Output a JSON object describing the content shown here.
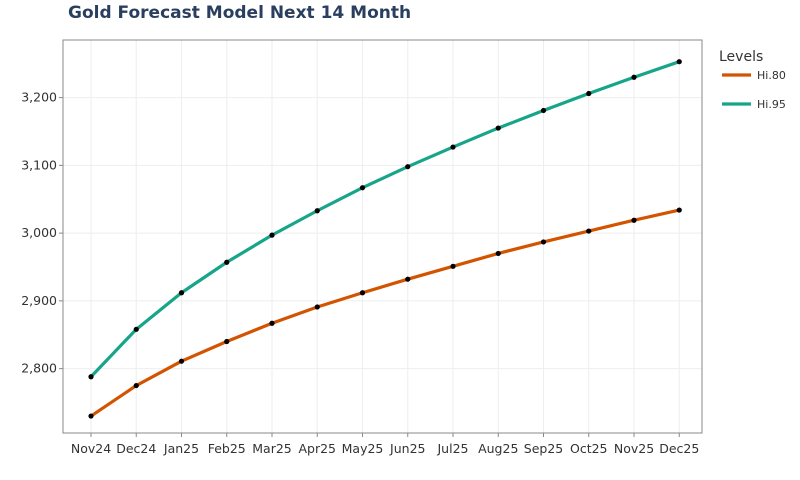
{
  "chart_data": {
    "type": "line",
    "title": "Gold Forecast Model Next 14 Month",
    "xlabel": "",
    "ylabel": "",
    "categories": [
      "Nov24",
      "Dec24",
      "Jan25",
      "Feb25",
      "Mar25",
      "Apr25",
      "May25",
      "Jun25",
      "Jul25",
      "Aug25",
      "Sep25",
      "Oct25",
      "Nov25",
      "Dec25"
    ],
    "ylim": [
      2705,
      3285
    ],
    "yticks": [
      2800,
      2900,
      3000,
      3100,
      3200
    ],
    "ytick_labels": [
      "2,800",
      "2,900",
      "3,000",
      "3,100",
      "3,200"
    ],
    "grid": true,
    "legend_title": "Levels",
    "legend_position": "top-right",
    "series": [
      {
        "name": "Hi.80",
        "color": "#d35400",
        "values": [
          2730,
          2775,
          2811,
          2840,
          2867,
          2891,
          2912,
          2932,
          2951,
          2970,
          2987,
          3003,
          3019,
          3034
        ]
      },
      {
        "name": "Hi.95",
        "color": "#17a589",
        "values": [
          2788,
          2858,
          2912,
          2957,
          2997,
          3033,
          3067,
          3098,
          3127,
          3155,
          3181,
          3206,
          3230,
          3253
        ]
      }
    ],
    "marker_color": "#000000"
  }
}
